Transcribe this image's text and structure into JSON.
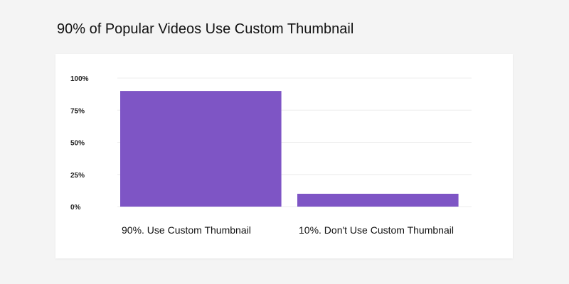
{
  "chart_data": {
    "type": "bar",
    "title": "90% of Popular Videos Use Custom Thumbnail",
    "categories": [
      "90%. Use Custom Thumbnail",
      "10%. Don't Use Custom Thumbnail"
    ],
    "values": [
      90,
      10
    ],
    "ylim": [
      0,
      100
    ],
    "yticks": [
      0,
      25,
      50,
      75,
      100
    ],
    "ytick_labels": [
      "0%",
      "25%",
      "50%",
      "75%",
      "100%"
    ],
    "xlabel": "",
    "ylabel": "",
    "grid": true,
    "legend": "none",
    "bar_color": "#7e55c5",
    "grid_color": "#eeeeee"
  }
}
